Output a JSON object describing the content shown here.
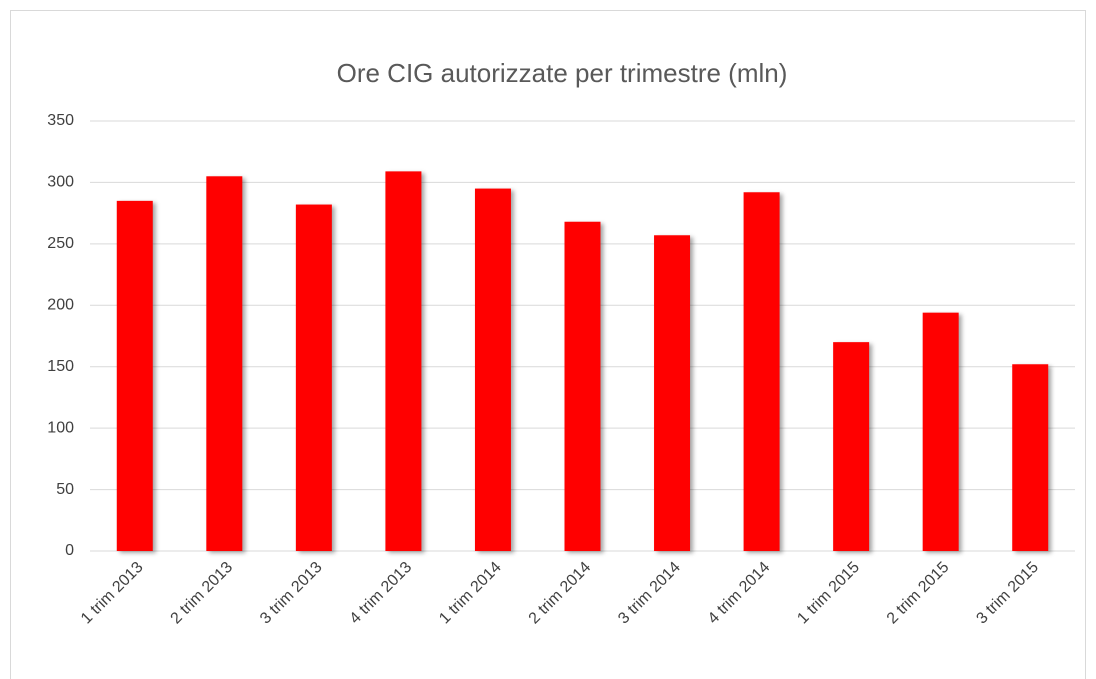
{
  "chart_data": {
    "type": "bar",
    "title": "Ore CIG autorizzate per trimestre (mln)",
    "categories": [
      "1 trim 2013",
      "2 trim 2013",
      "3 trim 2013",
      "4 trim 2013",
      "1 trim 2014",
      "2 trim 2014",
      "3 trim 2014",
      "4 trim 2014",
      "1 trim 2015",
      "2 trim 2015",
      "3 trim 2015"
    ],
    "values": [
      285,
      305,
      282,
      309,
      295,
      268,
      257,
      292,
      170,
      194,
      152
    ],
    "color": "#ff0000",
    "ylim": [
      0,
      350
    ],
    "yticks": [
      0,
      50,
      100,
      150,
      200,
      250,
      300,
      350
    ],
    "grid": true
  }
}
